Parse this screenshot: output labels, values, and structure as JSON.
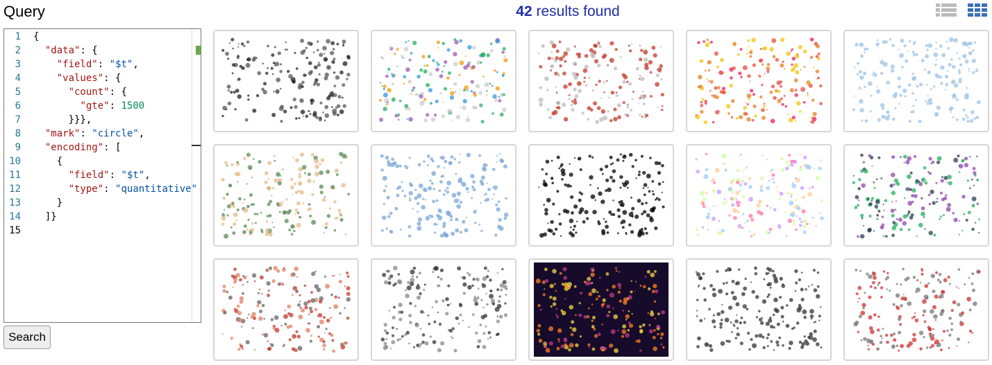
{
  "header": {
    "title": "Query",
    "results_count": "42",
    "results_text": "results found"
  },
  "editor": {
    "line_numbers": [
      "1",
      "2",
      "3",
      "4",
      "5",
      "6",
      "7",
      "8",
      "9",
      "10",
      "11",
      "12",
      "13",
      "14",
      "15"
    ],
    "lines": [
      "{",
      "  \"data\": {",
      "    \"field\": \"$t\",",
      "    \"values\": {",
      "      \"count\": {",
      "        \"gte\": 1500",
      "      }}},",
      "  \"mark\": \"circle\",",
      "  \"encoding\": [",
      "    {",
      "      \"field\": \"$t\",",
      "      \"type\": \"quantitative\"",
      "    }",
      "  ]}"
    ]
  },
  "button": "Search"
}
